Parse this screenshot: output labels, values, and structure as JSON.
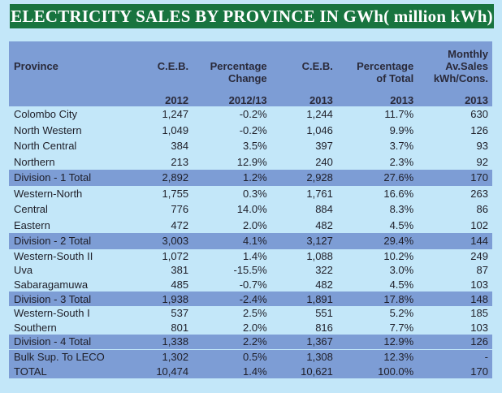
{
  "title": "ELECTRICITY SALES BY PROVINCE IN GWh( million kWh)",
  "headers": {
    "row1": [
      "",
      "",
      "",
      "",
      "",
      "Monthly"
    ],
    "row2": [
      "Province",
      "C.E.B.",
      "Percentage",
      "C.E.B.",
      "Percentage",
      "Av.Sales"
    ],
    "row3": [
      "",
      "",
      "Change",
      "",
      "of Total",
      "kWh/Cons."
    ],
    "row4": [
      "",
      "2012",
      "2012/13",
      "2013",
      "2013",
      "2013"
    ]
  },
  "rows": [
    {
      "type": "province",
      "cells": [
        "Colombo City",
        "1,247",
        "-0.2%",
        "1,244",
        "11.7%",
        "630"
      ]
    },
    {
      "type": "province",
      "cells": [
        "North Western",
        "1,049",
        "-0.2%",
        "1,046",
        "9.9%",
        "126"
      ]
    },
    {
      "type": "province",
      "cells": [
        "North Central",
        "384",
        "3.5%",
        "397",
        "3.7%",
        "93"
      ]
    },
    {
      "type": "province",
      "cells": [
        "Northern",
        "213",
        "12.9%",
        "240",
        "2.3%",
        "92"
      ]
    },
    {
      "type": "division",
      "cells": [
        "Division - 1  Total",
        "2,892",
        "1.2%",
        "2,928",
        "27.6%",
        "170"
      ]
    },
    {
      "type": "province",
      "cells": [
        "Western-North",
        "1,755",
        "0.3%",
        "1,761",
        "16.6%",
        "263"
      ]
    },
    {
      "type": "province",
      "cells": [
        "Central",
        "776",
        "14.0%",
        "884",
        "8.3%",
        "86"
      ]
    },
    {
      "type": "province",
      "cells": [
        "Eastern",
        "472",
        "2.0%",
        "482",
        "4.5%",
        "102"
      ]
    },
    {
      "type": "division",
      "cells": [
        "Division - 2 Total",
        "3,003",
        "4.1%",
        "3,127",
        "29.4%",
        "144"
      ]
    },
    {
      "type": "province",
      "cells": [
        "Western-South II",
        "1,072",
        "1.4%",
        "1,088",
        "10.2%",
        "249"
      ]
    },
    {
      "type": "province",
      "cells": [
        "Uva",
        "381",
        "-15.5%",
        "322",
        "3.0%",
        "87"
      ]
    },
    {
      "type": "province",
      "cells": [
        "Sabaragamuwa",
        "485",
        "-0.7%",
        "482",
        "4.5%",
        "103"
      ]
    },
    {
      "type": "division",
      "cells": [
        "Division - 3 Total",
        "1,938",
        "-2.4%",
        "1,891",
        "17.8%",
        "148"
      ]
    },
    {
      "type": "province",
      "cells": [
        "Western-South I",
        "537",
        "2.5%",
        "551",
        "5.2%",
        "185"
      ]
    },
    {
      "type": "province",
      "cells": [
        "Southern",
        "801",
        "2.0%",
        "816",
        "7.7%",
        "103"
      ]
    },
    {
      "type": "division",
      "cells": [
        "Division - 4 Total",
        "1,338",
        "2.2%",
        "1,367",
        "12.9%",
        "126"
      ]
    },
    {
      "type": "division sep",
      "cells": [
        "Bulk Sup. To LECO",
        "1,302",
        "0.5%",
        "1,308",
        "12.3%",
        "-"
      ]
    },
    {
      "type": "division",
      "cells": [
        "TOTAL",
        "10,474",
        "1.4%",
        "10,621",
        "100.0%",
        "170"
      ]
    }
  ],
  "colors": {
    "title_bg": "#18743f",
    "header_bg": "#7d9dd5",
    "page_bg": "#c3e7f9"
  }
}
